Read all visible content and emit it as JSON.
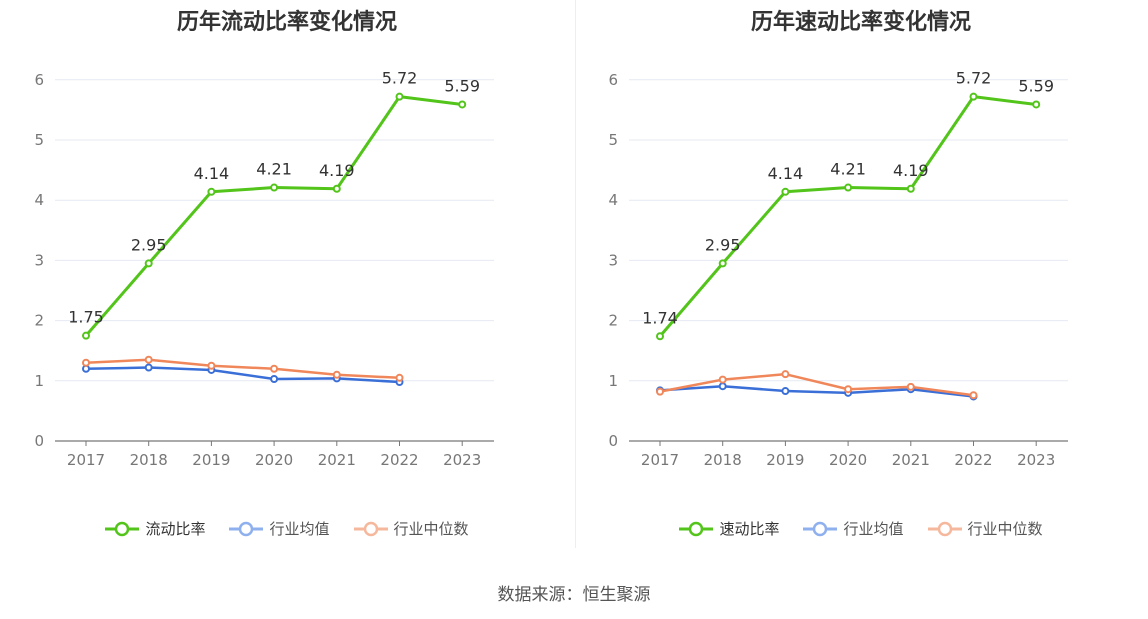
{
  "chart_data": [
    {
      "type": "line",
      "title": "历年流动比率变化情况",
      "categories": [
        "2017",
        "2018",
        "2019",
        "2020",
        "2021",
        "2022",
        "2023"
      ],
      "yticks": [
        "0",
        "1",
        "2",
        "3",
        "4",
        "5",
        "6"
      ],
      "ylim": [
        0,
        6.5
      ],
      "grid": true,
      "legend_position": "bottom",
      "series": [
        {
          "name": "流动比率",
          "color": "#52c41a",
          "values": [
            1.75,
            2.95,
            4.14,
            4.21,
            4.19,
            5.72,
            5.59
          ],
          "labels": [
            "1.75",
            "2.95",
            "4.14",
            "4.21",
            "4.19",
            "5.72",
            "5.59"
          ]
        },
        {
          "name": "行业均值",
          "color": "#3a6fd8",
          "legend_color": "#8fb0ee",
          "values": [
            1.2,
            1.22,
            1.18,
            1.03,
            1.04,
            0.98,
            null
          ]
        },
        {
          "name": "行业中位数",
          "color": "#f0875a",
          "legend_color": "#f6b89c",
          "values": [
            1.3,
            1.35,
            1.25,
            1.2,
            1.1,
            1.05,
            null
          ]
        }
      ]
    },
    {
      "type": "line",
      "title": "历年速动比率变化情况",
      "categories": [
        "2017",
        "2018",
        "2019",
        "2020",
        "2021",
        "2022",
        "2023"
      ],
      "yticks": [
        "0",
        "1",
        "2",
        "3",
        "4",
        "5",
        "6"
      ],
      "ylim": [
        0,
        6.5
      ],
      "grid": true,
      "legend_position": "bottom",
      "series": [
        {
          "name": "速动比率",
          "color": "#52c41a",
          "values": [
            1.74,
            2.95,
            4.14,
            4.21,
            4.19,
            5.72,
            5.59
          ],
          "labels": [
            "1.74",
            "2.95",
            "4.14",
            "4.21",
            "4.19",
            "5.72",
            "5.59"
          ]
        },
        {
          "name": "行业均值",
          "color": "#3a6fd8",
          "legend_color": "#8fb0ee",
          "values": [
            0.84,
            0.91,
            0.83,
            0.8,
            0.86,
            0.74,
            null
          ]
        },
        {
          "name": "行业中位数",
          "color": "#f0875a",
          "legend_color": "#f6b89c",
          "values": [
            0.82,
            1.02,
            1.11,
            0.86,
            0.9,
            0.76,
            null
          ]
        }
      ]
    }
  ],
  "source_text": "数据来源：恒生聚源"
}
